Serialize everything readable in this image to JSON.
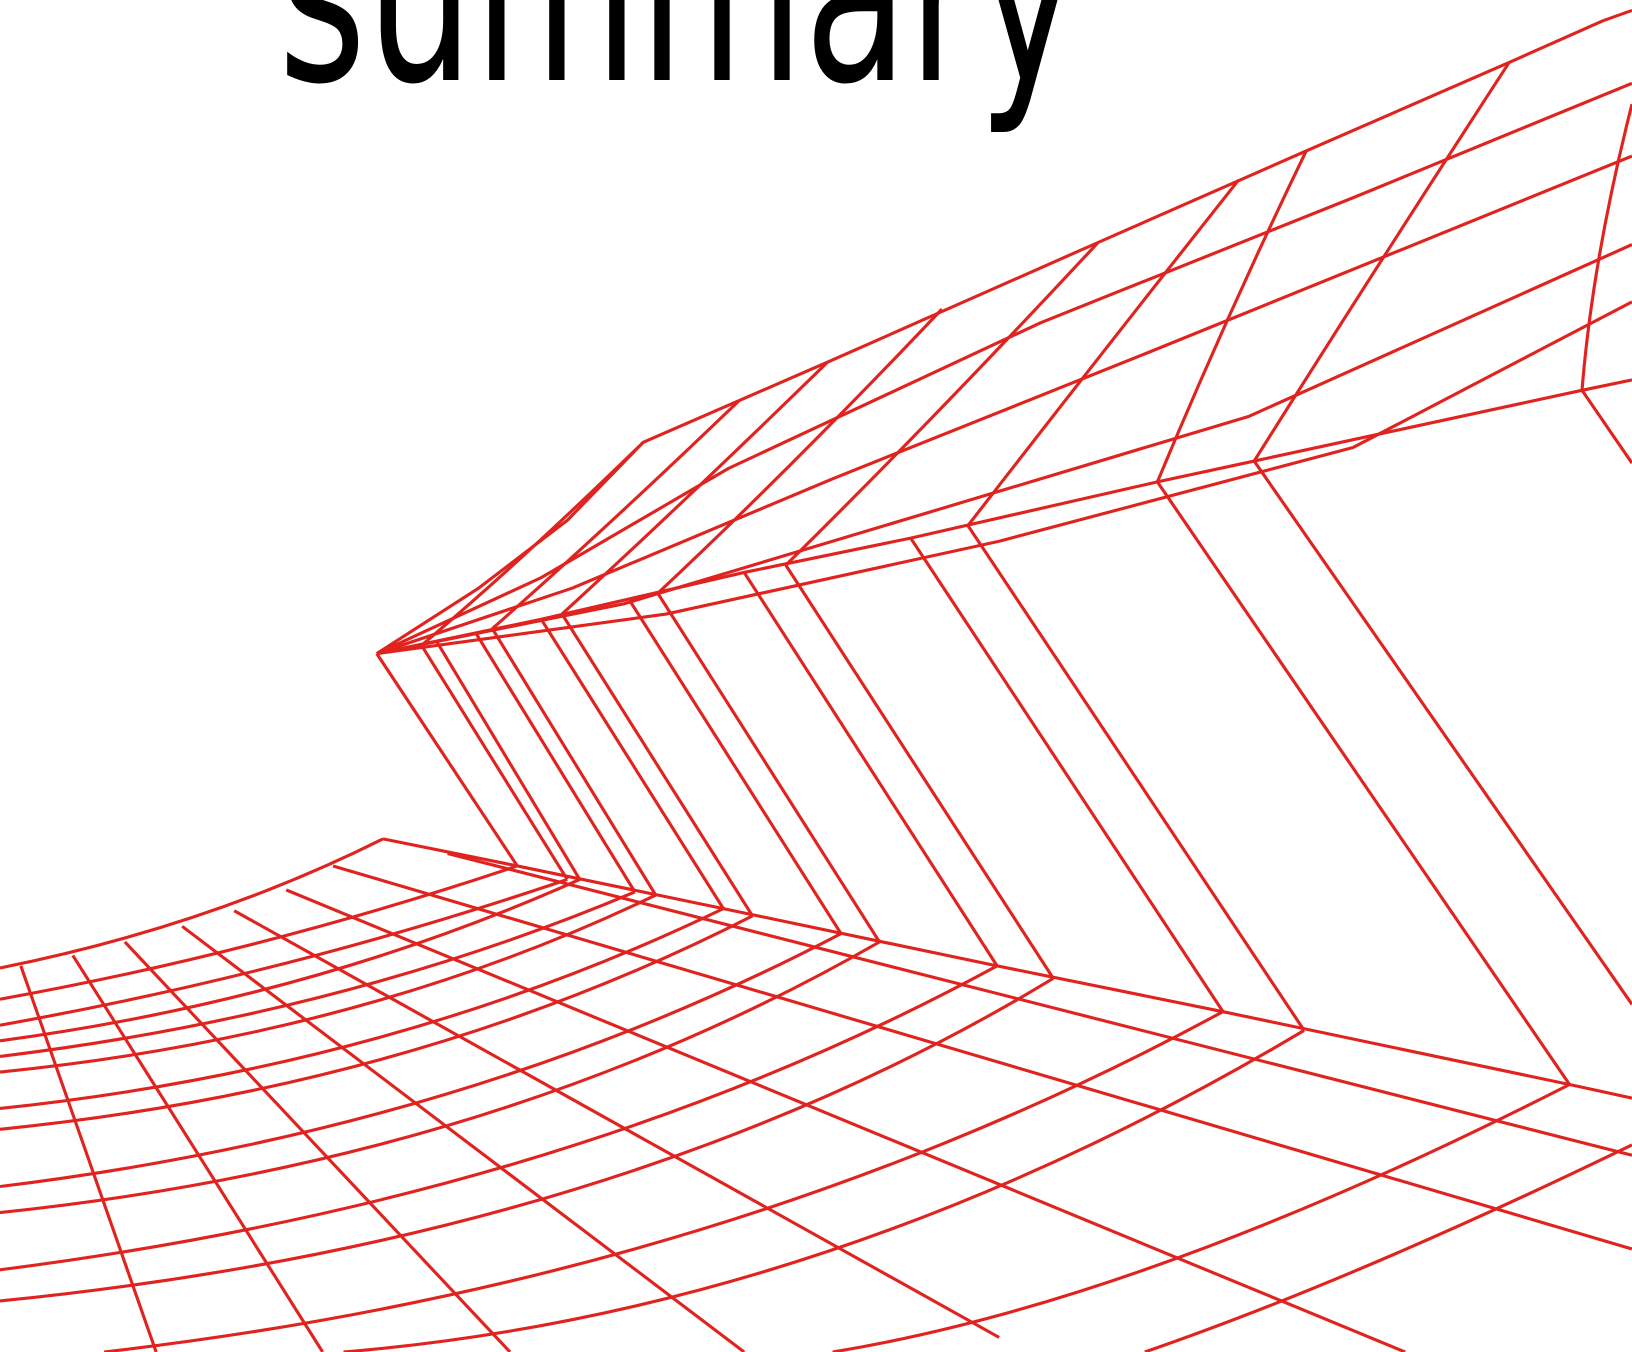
{
  "title": "summary"
}
